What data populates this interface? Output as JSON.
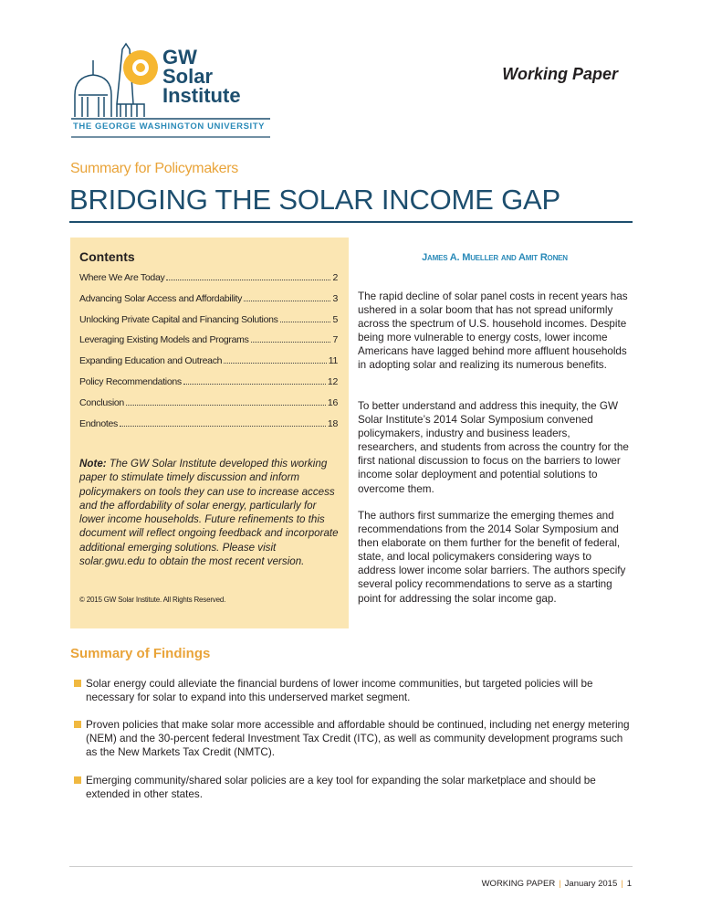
{
  "header": {
    "working_paper": "Working Paper",
    "logo": {
      "line1": "GW",
      "line2": "Solar",
      "line3": "Institute",
      "university": "THE GEORGE WASHINGTON UNIVERSITY"
    }
  },
  "subtitle": "Summary for Policymakers",
  "title": "BRIDGING THE SOLAR INCOME GAP",
  "contents": {
    "heading": "Contents",
    "items": [
      {
        "label": "Where We Are Today",
        "page": "2"
      },
      {
        "label": "Advancing Solar Access and Affordability",
        "page": "3"
      },
      {
        "label": "Unlocking Private Capital and Financing Solutions",
        "page": "5"
      },
      {
        "label": "Leveraging Existing Models and Programs",
        "page": "7"
      },
      {
        "label": "Expanding Education and Outreach",
        "page": "11"
      },
      {
        "label": "Policy Recommendations",
        "page": "12"
      },
      {
        "label": "Conclusion",
        "page": "16"
      },
      {
        "label": "Endnotes",
        "page": "18"
      }
    ],
    "note_label": "Note:",
    "note": " The GW Solar Institute developed this working paper to stimulate timely discussion and inform policymakers on tools they can use to increase access and the affordability of solar energy, particularly for lower income households. Future refinements to this document will reflect ongoing feedback and incorporate additional emerging solutions. Please visit solar.gwu.edu to obtain the most recent version.",
    "copyright": "© 2015 GW Solar Institute. All Rights Reserved."
  },
  "authors": "James A. Mueller and Amit Ronen",
  "paragraphs": [
    "The rapid decline of solar panel costs in recent years has ushered in a solar boom that has not spread uniformly across the spectrum of U.S. household incomes. Despite being more vulnerable to energy costs, lower income Americans have lagged behind more affluent households in adopting solar and realizing its numerous benefits.",
    "To better understand and address this inequity, the GW Solar Institute’s 2014 Solar Symposium convened policymakers, industry and business leaders, researchers, and students from across the country for the first national discussion to focus on the barriers to lower income solar deployment and potential solutions to overcome them.",
    "The authors first summarize the emerging themes and recommendations from the 2014 Solar Symposium and then elaborate on them further for the benefit of federal, state, and local policymakers considering ways to address lower income solar barriers. The authors specify several policy recommendations to serve as a starting point for addressing the solar income gap."
  ],
  "findings": {
    "heading": "Summary of Findings",
    "items": [
      "Solar energy could alleviate the financial burdens of lower income communities, but targeted policies will be necessary for solar to expand into this underserved market segment.",
      "Proven policies that make solar more accessible and affordable should be continued, including net energy metering (NEM) and the 30-percent federal Investment Tax Credit (ITC), as well as community development programs such as the New Markets Tax Credit (NMTC).",
      "Emerging community/shared solar policies are a key tool for expanding the solar marketplace and should be extended in other states."
    ]
  },
  "footer": {
    "label": "WORKING PAPER",
    "date": "January 2015",
    "page": "1"
  },
  "colors": {
    "navy": "#1d4e6e",
    "orange": "#e9a43a",
    "teal": "#2a8ab8",
    "box": "#fbe6b3"
  }
}
